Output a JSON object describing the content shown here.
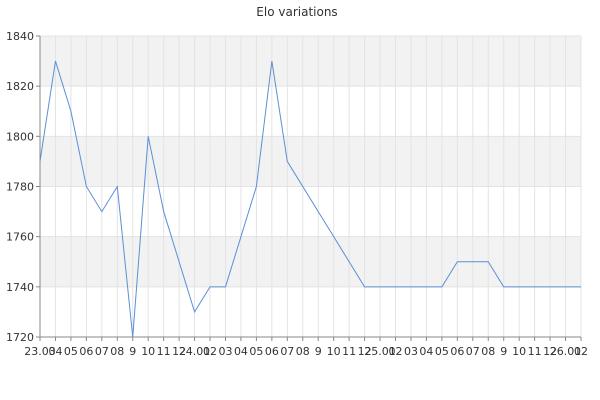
{
  "chart_data": {
    "type": "line",
    "title": "Elo variations",
    "xlabel": "",
    "ylabel": "",
    "ylim": [
      1720,
      1840
    ],
    "yticks": [
      "1720",
      "1740",
      "1760",
      "1780",
      "1800",
      "1820",
      "1840"
    ],
    "grid": true,
    "x_tick_labels": [
      "23.03",
      "04",
      "05",
      "06",
      "07",
      "08",
      "9",
      "10",
      "11",
      "12",
      "24.01",
      "02",
      "03",
      "04",
      "05",
      "06",
      "07",
      "08",
      "9",
      "10",
      "11",
      "12",
      "25.01",
      "02",
      "03",
      "04",
      "05",
      "06",
      "07",
      "08",
      "9",
      "10",
      "11",
      "12",
      "26.01",
      "02"
    ],
    "series": [
      {
        "color": "#5b8fd6",
        "values": [
          1790,
          1830,
          1810,
          1780,
          1770,
          1780,
          1720,
          1800,
          1770,
          1750,
          1730,
          1740,
          1740,
          1760,
          1780,
          1830,
          1790,
          1780,
          1770,
          1760,
          1750,
          1740,
          1740,
          1740,
          1740,
          1740,
          1740,
          1750,
          1750,
          1750,
          1740,
          1740,
          1740,
          1740,
          1740,
          1740
        ]
      }
    ]
  }
}
